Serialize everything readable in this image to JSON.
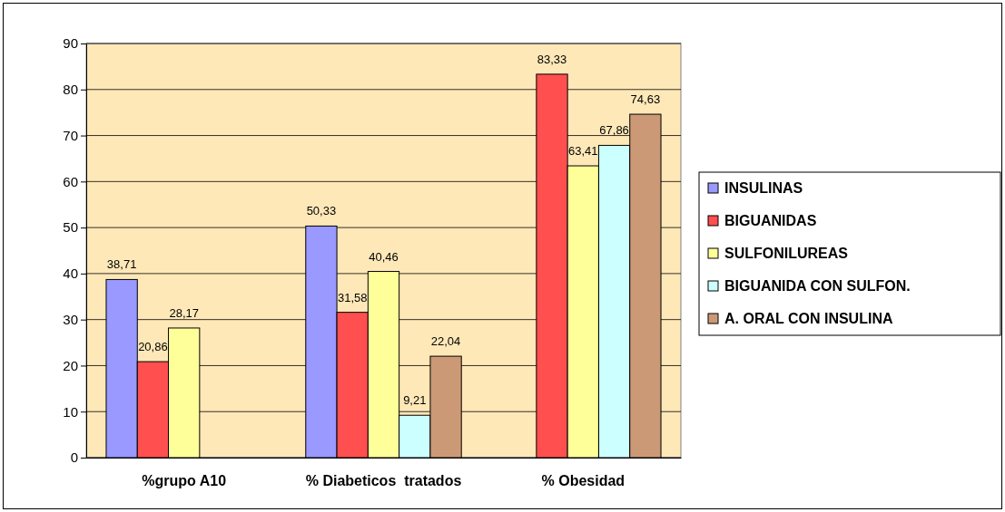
{
  "chart_data": {
    "type": "bar",
    "categories": [
      "%grupo A10",
      "% Diabeticos  tratados",
      "% Obesidad"
    ],
    "series": [
      {
        "name": "INSULINAS",
        "color": "#9999ff",
        "values": [
          38.71,
          50.33,
          null
        ],
        "value_labels": [
          "38,71",
          "50,33",
          null
        ]
      },
      {
        "name": "BIGUANIDAS",
        "color": "#ff4f4f",
        "values": [
          20.86,
          31.58,
          83.33
        ],
        "value_labels": [
          "20,86",
          "31,58",
          "83,33"
        ]
      },
      {
        "name": "SULFONILUREAS",
        "color": "#ffff99",
        "values": [
          28.17,
          40.46,
          63.41
        ],
        "value_labels": [
          "28,17",
          "40,46",
          "63,41"
        ]
      },
      {
        "name": "BIGUANIDA CON SULFON.",
        "color": "#ccffff",
        "values": [
          null,
          9.21,
          67.86
        ],
        "value_labels": [
          null,
          "9,21",
          "67,86"
        ]
      },
      {
        "name": "A. ORAL CON INSULINA",
        "color": "#cc9977",
        "values": [
          null,
          22.04,
          74.63
        ],
        "value_labels": [
          null,
          "22,04",
          "74,63"
        ]
      }
    ],
    "ylim": [
      0,
      90
    ],
    "yticks": [
      0,
      10,
      20,
      30,
      40,
      50,
      60,
      70,
      80,
      90
    ],
    "grid": "y",
    "legend": "right"
  }
}
